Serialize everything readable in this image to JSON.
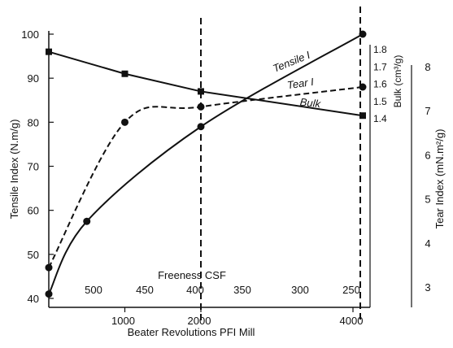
{
  "chart_data": {
    "type": "line",
    "title": "",
    "xlabel": "Beater Revolutions PFI Mill",
    "x_ticks": [
      "1000",
      "2000",
      "4000"
    ],
    "xlim": [
      0,
      4300
    ],
    "top_axis_label": "Freeness CSF",
    "top_axis_ticks": [
      "500",
      "450",
      "400",
      "350",
      "300",
      "250"
    ],
    "left_axis": {
      "label": "Tensile Index (N.m/g)",
      "ticks": [
        "40",
        "50",
        "60",
        "70",
        "80",
        "90",
        "100"
      ],
      "ylim": [
        40,
        100
      ]
    },
    "bulk_axis": {
      "label": "Bulk (cm³/g)",
      "ticks": [
        "1.4",
        "1.5",
        "1.6",
        "1.7",
        "1.8"
      ],
      "ylim": [
        1.4,
        1.8
      ]
    },
    "tear_axis": {
      "label": "Tear Index (mN.m²/g)",
      "ticks": [
        "3",
        "4",
        "5",
        "6",
        "7",
        "8"
      ],
      "ylim": [
        3,
        8
      ]
    },
    "vertical_dashed_lines_x": [
      2000,
      4000
    ],
    "series": [
      {
        "name": "Tensile I",
        "axis": "left",
        "style": "solid",
        "marker": "circle",
        "x": [
          0,
          500,
          2000,
          4000
        ],
        "y": [
          41,
          57.5,
          79,
          100
        ]
      },
      {
        "name": "Tear I",
        "axis": "left",
        "style": "dashed",
        "marker": "circle",
        "x": [
          0,
          1000,
          2000,
          4000
        ],
        "y": [
          47,
          80,
          83.5,
          88
        ]
      },
      {
        "name": "Bulk",
        "axis": "left",
        "style": "solid",
        "marker": "square",
        "x": [
          0,
          1000,
          2000,
          4000
        ],
        "y": [
          96,
          91,
          87,
          81.5
        ]
      }
    ]
  }
}
